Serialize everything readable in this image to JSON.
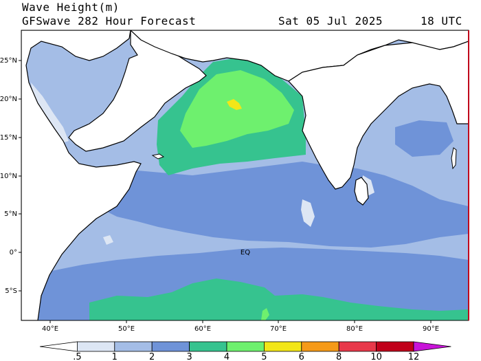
{
  "header": {
    "title": "Wave Height(m)",
    "subtitle": "GFSwave 282 Hour Forecast",
    "date": "Sat 05 Jul 2025",
    "time": "18 UTC"
  },
  "map": {
    "lat_labels": [
      "25°N",
      "20°N",
      "15°N",
      "10°N",
      "5°N",
      "0°",
      "5°S"
    ],
    "lon_labels": [
      "40°E",
      "50°E",
      "60°E",
      "70°E",
      "80°E",
      "90°E"
    ],
    "equator_label": "EQ",
    "extent": {
      "lon": [
        37,
        95
      ],
      "lat": [
        -8.8,
        28
      ]
    }
  },
  "colorbar": {
    "labels": [
      ".5",
      "1",
      "2",
      "3",
      "4",
      "5",
      "6",
      "8",
      "10",
      "12"
    ],
    "colors": [
      "#ffffff",
      "#dde6f4",
      "#a4bde6",
      "#6f93d8",
      "#36c38f",
      "#6ef06e",
      "#f2e618",
      "#f59a18",
      "#e8384a",
      "#c0001a",
      "#c814d8"
    ]
  },
  "colors": {
    "land": "#ffffff",
    "c1": "#a4bde6",
    "c2": "#6f93d8",
    "c3": "#36c38f",
    "c4": "#6ef06e",
    "c5": "#f2e618",
    "c05": "#dde6f4"
  }
}
